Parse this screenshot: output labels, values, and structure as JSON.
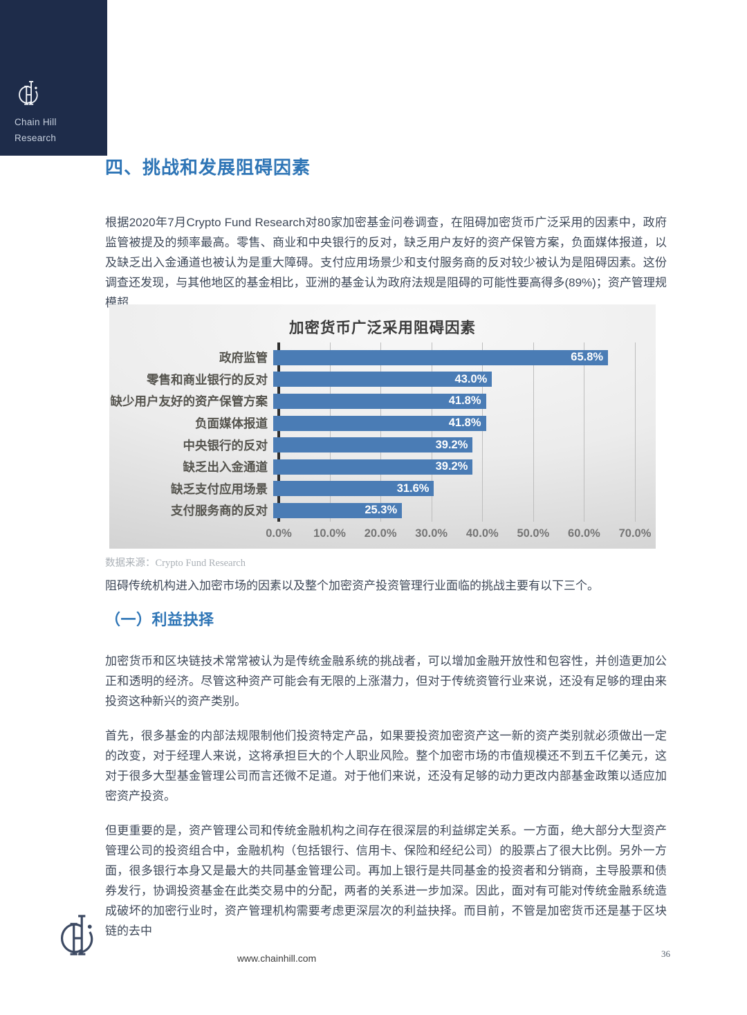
{
  "brand": {
    "line1": "Chain Hill",
    "line2": "Research"
  },
  "heading": "四、挑战和发展阻碍因素",
  "subheading": "（一）利益抉择",
  "paragraphs": {
    "p1": "根据2020年7月Crypto Fund Research对80家加密基金问卷调查，在阻碍加密货币广泛采用的因素中，政府监管被提及的频率最高。零售、商业和中央银行的反对，缺乏用户友好的资产保管方案，负面媒体报道，以及缺乏出入金通道也被认为是重大障碍。支付应用场景少和支付服务商的反对较少被认为是阻碍因素。这份调查还发现，与其他地区的基金相比，亚洲的基金认为政府法规是阻碍的可能性要高得多(89%)；资产管理规模超",
    "p2": "阻碍传统机构进入加密市场的因素以及整个加密资产投资管理行业面临的挑战主要有以下三个。",
    "p3": "加密货币和区块链技术常常被认为是传统金融系统的挑战者，可以增加金融开放性和包容性，并创造更加公正和透明的经济。尽管这种资产可能会有无限的上涨潜力，但对于传统资管行业来说，还没有足够的理由来投资这种新兴的资产类别。",
    "p4": "首先，很多基金的内部法规限制他们投资特定产品，如果要投资加密资产这一新的资产类别就必须做出一定的改变，对于经理人来说，这将承担巨大的个人职业风险。整个加密市场的市值规模还不到五千亿美元，这对于很多大型基金管理公司而言还微不足道。对于他们来说，还没有足够的动力更改内部基金政策以适应加密资产投资。",
    "p5": "但更重要的是，资产管理公司和传统金融机构之间存在很深层的利益绑定关系。一方面，绝大部分大型资产管理公司的投资组合中，金融机构（包括银行、信用卡、保险和经纪公司）的股票占了很大比例。另外一方面，很多银行本身又是最大的共同基金管理公司。再加上银行是共同基金的投资者和分销商，主导股票和债券发行，协调投资基金在此类交易中的分配，两者的关系进一步加深。因此，面对有可能对传统金融系统造成破坏的加密行业时，资产管理机构需要考虑更深层次的利益抉择。而目前，不管是加密货币还是基于区块链的去中"
  },
  "chart_data": {
    "type": "bar",
    "orientation": "horizontal",
    "title": "加密货币广泛采用阻碍因素",
    "categories": [
      "政府监管",
      "零售和商业银行的反对",
      "缺少用户友好的资产保管方案",
      "负面媒体报道",
      "中央银行的反对",
      "缺乏出入金通道",
      "缺乏支付应用场景",
      "支付服务商的反对"
    ],
    "values": [
      65.8,
      43.0,
      41.8,
      41.8,
      39.2,
      39.2,
      31.6,
      25.3
    ],
    "value_labels": [
      "65.8%",
      "43.0%",
      "41.8%",
      "41.8%",
      "39.2%",
      "39.2%",
      "31.6%",
      "25.3%"
    ],
    "x_ticks": [
      "0.0%",
      "10.0%",
      "20.0%",
      "30.0%",
      "40.0%",
      "50.0%",
      "60.0%",
      "70.0%"
    ],
    "xlim": [
      0,
      70
    ],
    "xlabel": "",
    "ylabel": "",
    "grid": true,
    "legend": "none",
    "bar_color": "#4a7cb5"
  },
  "chart_source": {
    "label": "数据来源：",
    "value": "Crypto Fund Research"
  },
  "footer": {
    "url": "www.chainhill.com",
    "page_number": "36"
  },
  "colors": {
    "brand_navy": "#1e2c4a",
    "heading_blue": "#2e75b6",
    "body_text": "#3e4858",
    "bar_blue": "#4a7cb5"
  }
}
